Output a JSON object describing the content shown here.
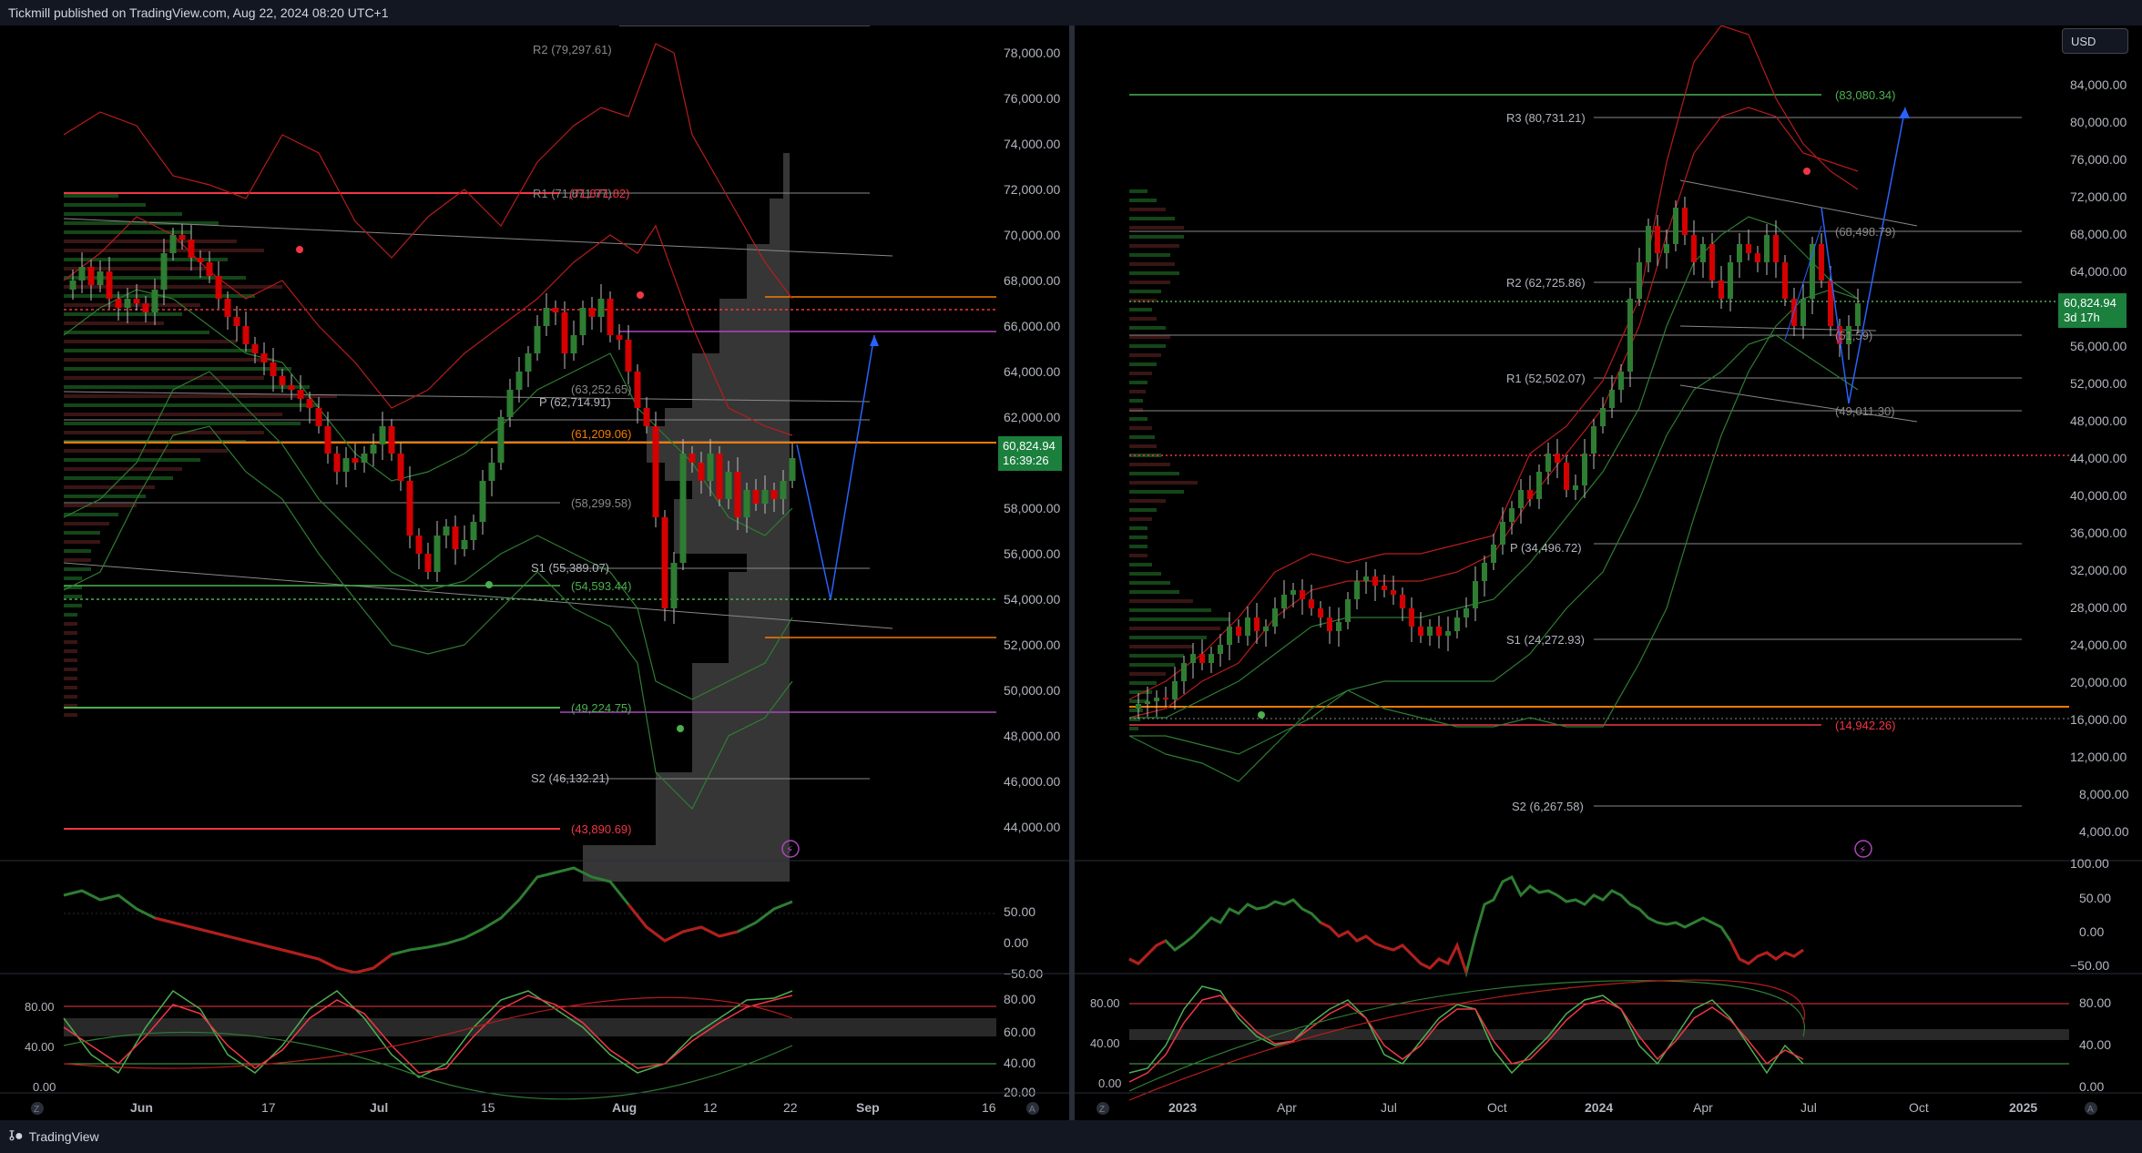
{
  "header": {
    "title": "Tickmill published on TradingView.com, Aug 22, 2024 08:20 UTC+1"
  },
  "footer": {
    "brand": "TradingView",
    "logo_icon": "tradingview-logo-icon"
  },
  "left_chart": {
    "price_axis": [
      "78,000.00",
      "76,000.00",
      "74,000.00",
      "72,000.00",
      "70,000.00",
      "68,000.00",
      "66,000.00",
      "64,000.00",
      "62,000.00",
      "58,000.00",
      "56,000.00",
      "54,000.00",
      "52,000.00",
      "50,000.00",
      "48,000.00",
      "46,000.00",
      "44,000.00"
    ],
    "last_price": "60,824.94",
    "countdown": "16:39:26",
    "pivot_labels": {
      "r2": "R2 (79,297.61)",
      "r1": "R1 (71,871.77)",
      "r1b": "(71,871.82)",
      "p": "P (62,714.91)",
      "l1": "(63,252.65)",
      "l2": "(61,209.06)",
      "l3": "(58,299.58)",
      "s1": "S1 (55,389.07)",
      "l4": "(54,593.44)",
      "l5": "(49,224.75)",
      "s2": "S2 (46,132.21)",
      "l6": "(43,890.69)"
    },
    "rsi_axis": [
      "50.00",
      "0.00",
      "−50.00"
    ],
    "stoch_axis_left": [
      "80.00",
      "40.00",
      "0.00"
    ],
    "stoch_axis_right": [
      "80.00",
      "60.00",
      "40.00",
      "20.00"
    ],
    "time_axis": [
      "Jun",
      "17",
      "Jul",
      "15",
      "Aug",
      "12",
      "22",
      "Sep",
      "16"
    ],
    "corner_left": "Z",
    "corner_right": "A"
  },
  "right_chart": {
    "currency_button": "USD",
    "price_axis": [
      "84,000.00",
      "80,000.00",
      "76,000.00",
      "72,000.00",
      "68,000.00",
      "64,000.00",
      "56,000.00",
      "52,000.00",
      "48,000.00",
      "44,000.00",
      "40,000.00",
      "36,000.00",
      "32,000.00",
      "28,000.00",
      "24,000.00",
      "20,000.00",
      "16,000.00",
      "12,000.00",
      "8,000.00",
      "4,000.00"
    ],
    "last_price": "60,824.94",
    "countdown": "3d 17h",
    "pivot_labels": {
      "l1": "(83,080.34)",
      "r3": "R3 (80,731.21)",
      "l2": "(68,498.79)",
      "r2": "R2 (62,725.86)",
      "l3": "(51,59)",
      "r1": "R1 (52,502.07)",
      "l4": "(49,011.30)",
      "p": "P (34,496.72)",
      "s1": "S1 (24,272.93)",
      "l5": "(14,942.26)",
      "s2": "S2 (6,267.58)"
    },
    "rsi_axis": [
      "100.00",
      "50.00",
      "0.00",
      "−50.00"
    ],
    "stoch_axis_left": [
      "80.00",
      "40.00",
      "0.00"
    ],
    "stoch_axis_right": [
      "80.00",
      "40.00",
      "0.00"
    ],
    "time_axis": [
      "2023",
      "Apr",
      "Jul",
      "Oct",
      "2024",
      "Apr",
      "Jul",
      "Oct",
      "2025"
    ],
    "corner_left": "Z",
    "corner_right": "A"
  },
  "colors": {
    "up": "#26a69a",
    "down": "#ef5350",
    "accent": "#2962ff",
    "panel": "#131722"
  }
}
